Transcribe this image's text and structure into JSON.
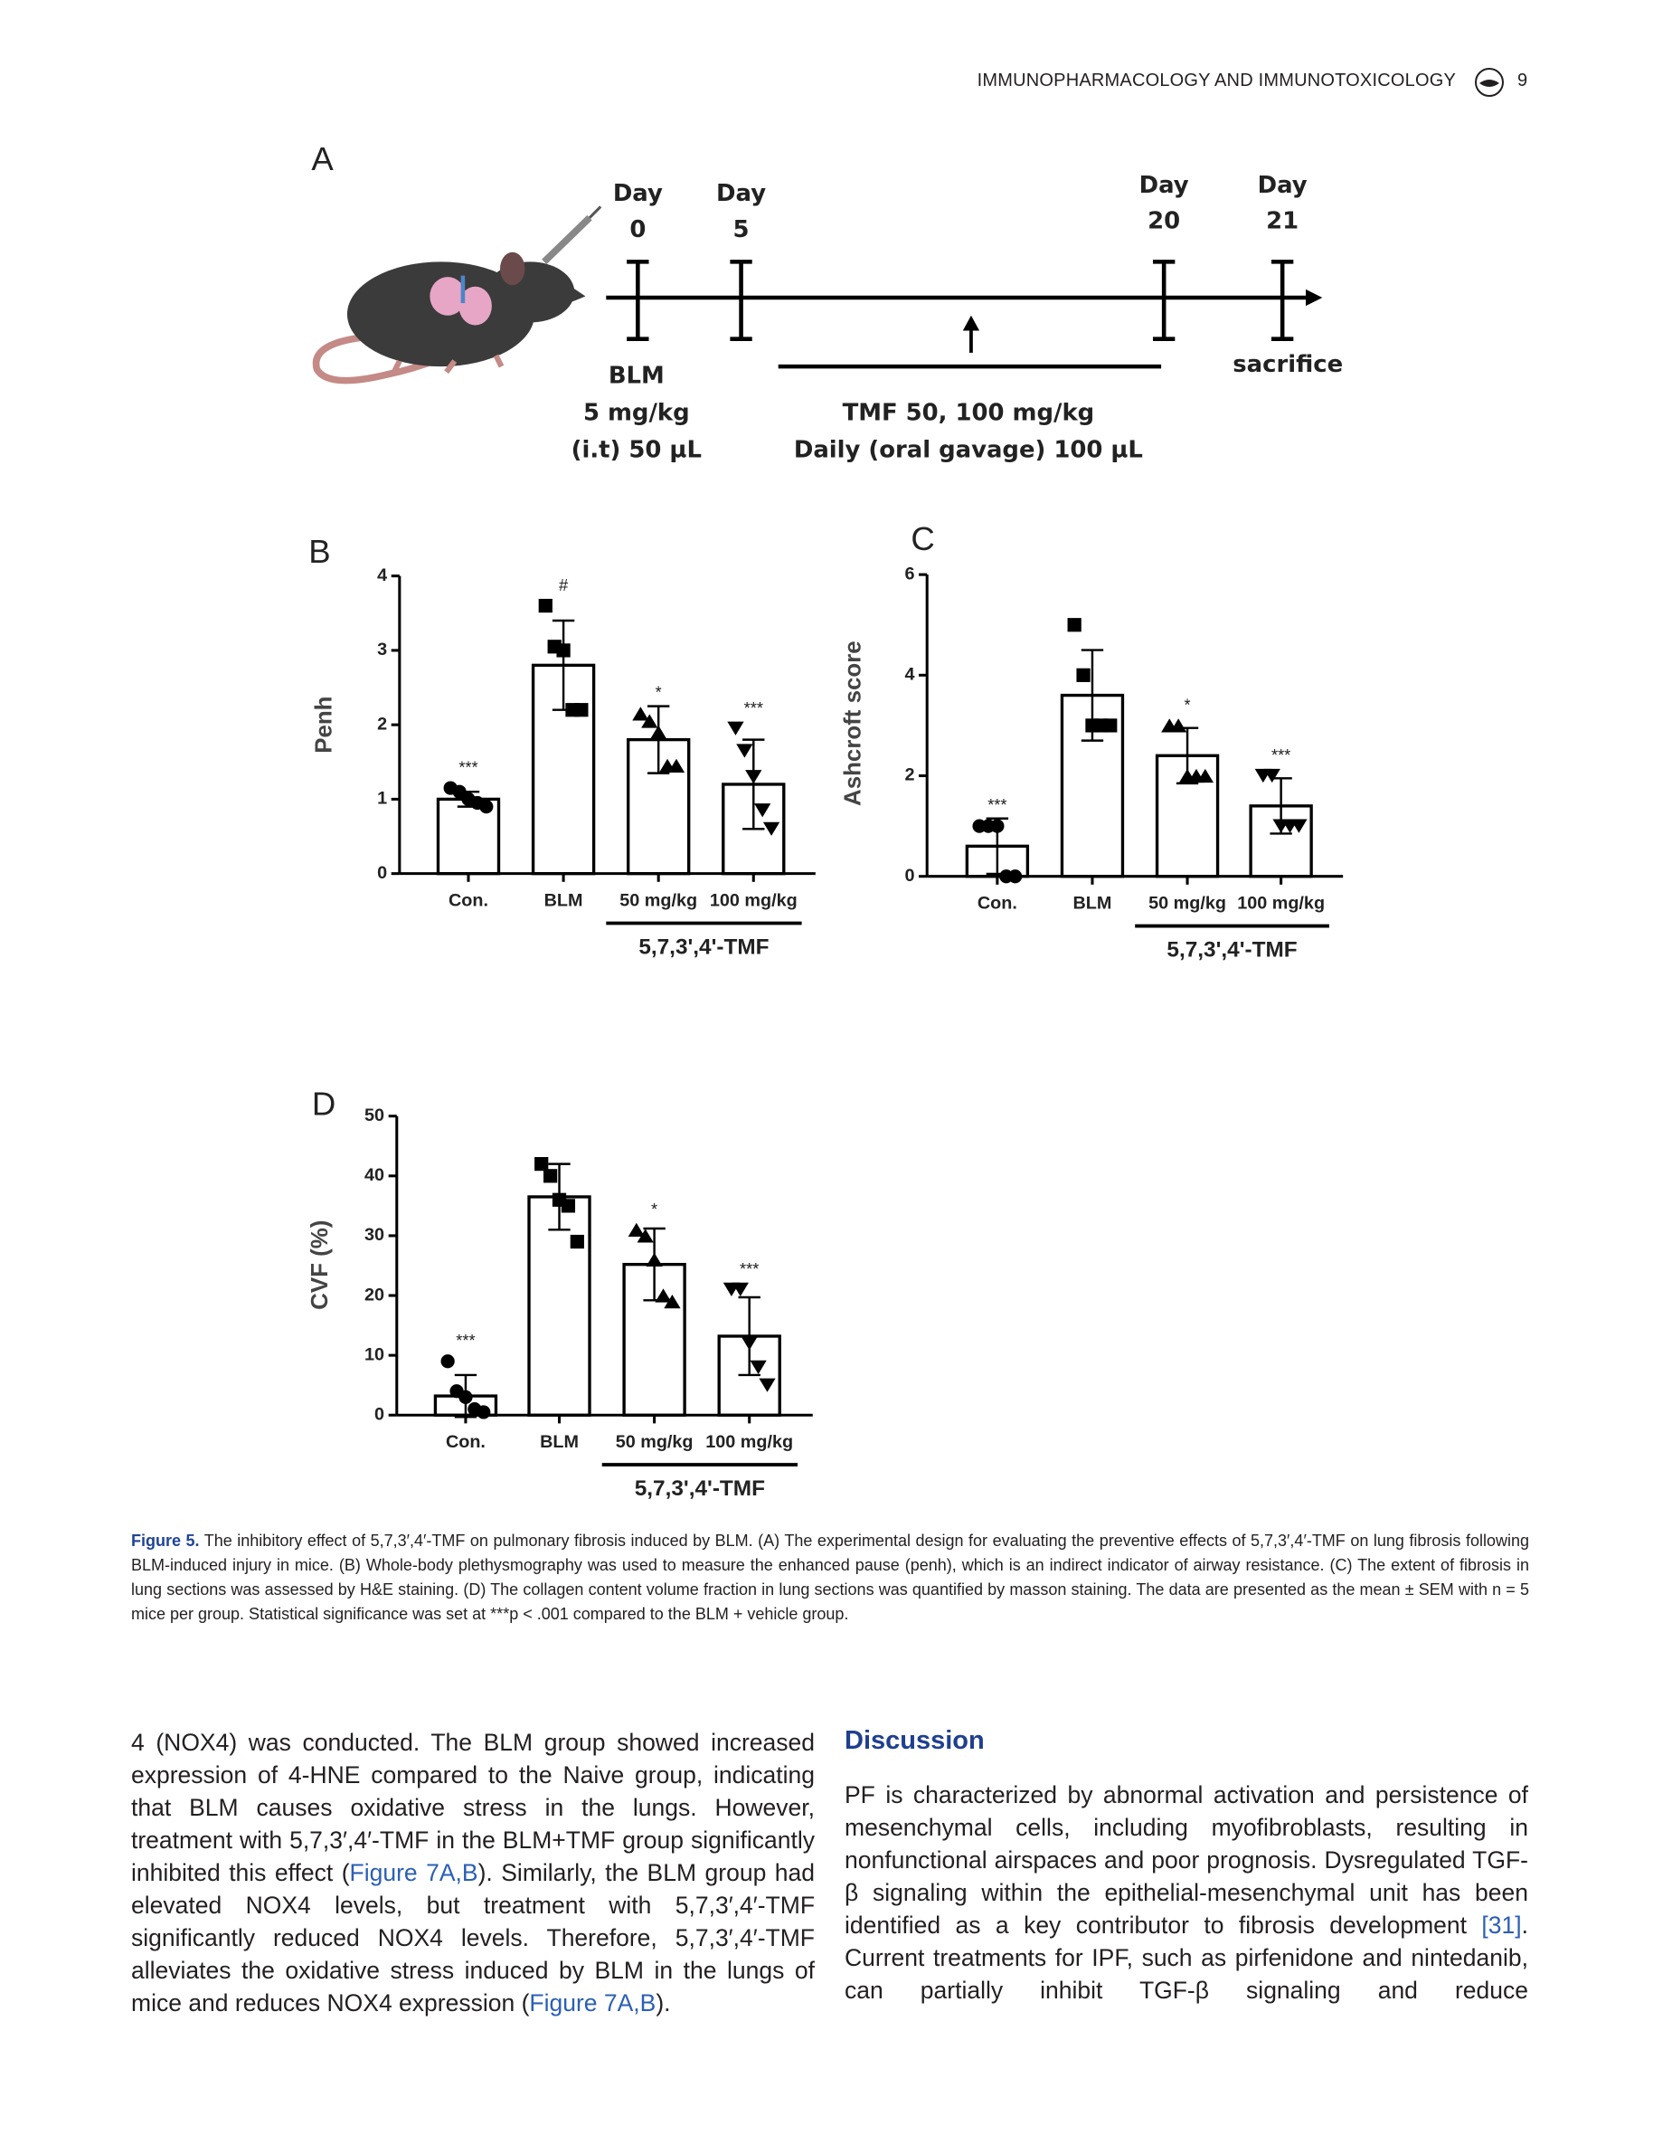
{
  "header": {
    "journal": "IMMUNOPHARMACOLOGY AND IMMUNOTOXICOLOGY",
    "page": "9"
  },
  "panel_a": {
    "label": "A",
    "days": [
      {
        "label": "Day",
        "day": "0"
      },
      {
        "label": "Day",
        "day": "5"
      },
      {
        "label": "Day",
        "day": "20"
      },
      {
        "label": "Day",
        "day": "21"
      }
    ],
    "blm": [
      "BLM",
      "5 mg/kg",
      "(i.t) 50 µL"
    ],
    "tmf": [
      "TMF 50, 100 mg/kg",
      "Daily (oral gavage) 100 µL"
    ],
    "sacrifice": "sacrifice"
  },
  "chart_data": [
    {
      "panel": "B",
      "type": "bar",
      "ylabel": "Penh",
      "categories": [
        "Con.",
        "BLM",
        "50 mg/kg",
        "100 mg/kg"
      ],
      "group_label": "5,7,3',4'-TMF",
      "values": [
        1.0,
        2.8,
        1.8,
        1.2
      ],
      "errors": [
        0.1,
        0.6,
        0.45,
        0.6
      ],
      "points": [
        [
          1.15,
          1.1,
          1.0,
          0.95,
          0.9
        ],
        [
          3.6,
          3.05,
          3.0,
          2.2,
          2.2
        ],
        [
          2.15,
          2.05,
          1.9,
          1.45,
          1.45
        ],
        [
          1.95,
          1.65,
          1.3,
          0.85,
          0.6
        ]
      ],
      "markers": [
        "circle",
        "square",
        "triangle-up",
        "triangle-down"
      ],
      "annotations": [
        "***",
        "#",
        "*",
        "***"
      ],
      "ylim": [
        0,
        4
      ],
      "yticks": [
        0,
        1,
        2,
        3,
        4
      ],
      "bar_color": "#ffffff",
      "marker_color": "#000000"
    },
    {
      "panel": "C",
      "type": "bar",
      "ylabel": "Ashcroft score",
      "categories": [
        "Con.",
        "BLM",
        "50 mg/kg",
        "100 mg/kg"
      ],
      "group_label": "5,7,3',4'-TMF",
      "values": [
        0.6,
        3.6,
        2.4,
        1.4
      ],
      "errors": [
        0.55,
        0.9,
        0.55,
        0.55
      ],
      "points": [
        [
          1.0,
          1.0,
          1.0,
          0,
          0
        ],
        [
          5.0,
          4.0,
          3.0,
          3.0,
          3.0
        ],
        [
          3.0,
          3.0,
          2.0,
          2.0,
          2.0
        ],
        [
          2.0,
          2.0,
          1.0,
          1.0,
          1.0
        ]
      ],
      "markers": [
        "circle",
        "square",
        "triangle-up",
        "triangle-down"
      ],
      "annotations": [
        "***",
        null,
        "*",
        "***"
      ],
      "ylim": [
        0,
        6
      ],
      "yticks": [
        0,
        2,
        4,
        6
      ],
      "bar_color": "#ffffff",
      "marker_color": "#000000"
    },
    {
      "panel": "D",
      "type": "bar",
      "ylabel": "CVF (%)",
      "categories": [
        "Con.",
        "BLM",
        "50 mg/kg",
        "100 mg/kg"
      ],
      "group_label": "5,7,3',4'-TMF",
      "values": [
        3.2,
        36.5,
        25.2,
        13.2
      ],
      "errors": [
        3.5,
        5.5,
        6.0,
        6.5
      ],
      "points": [
        [
          9,
          4,
          3,
          1,
          0.5
        ],
        [
          42,
          40,
          36,
          35,
          29
        ],
        [
          31,
          30,
          26,
          20,
          19
        ],
        [
          21,
          21,
          12,
          8,
          5
        ]
      ],
      "markers": [
        "circle",
        "square",
        "triangle-up",
        "triangle-down"
      ],
      "annotations": [
        "***",
        null,
        "*",
        "***"
      ],
      "ylim": [
        0,
        50
      ],
      "yticks": [
        0,
        10,
        20,
        30,
        40,
        50
      ],
      "bar_color": "#ffffff",
      "marker_color": "#000000"
    }
  ],
  "caption": {
    "label": "Figure 5.",
    "text": "The inhibitory effect of 5,7,3′,4′-TMF on pulmonary fibrosis induced by BLM. (A) The experimental design for evaluating the preventive effects of 5,7,3′,4′-TMF on lung fibrosis following BLM-induced injury in mice. (B) Whole-body plethysmography was used to measure the enhanced pause (penh), which is an indirect indicator of airway resistance. (C) The extent of fibrosis in lung sections was assessed by H&E staining. (D) The collagen content volume fraction in lung sections was quantified by masson staining. The data are presented as the mean ± SEM with n = 5 mice per group. Statistical significance was set at ***p < .001 compared to the BLM + vehicle group."
  },
  "body": {
    "left": [
      "4 (NOX4) was conducted. The BLM group showed increased expression of 4-HNE compared to the Naive group, indicating that BLM causes oxidative stress in the lungs. However, treatment with 5,7,3′,4′-TMF in the BLM+TMF group significantly inhibited this effect (",
      "Figure 7A,B",
      "). Similarly, the BLM group had elevated NOX4 levels, but treatment with 5,7,3′,4′-TMF significantly reduced NOX4 levels. Therefore, 5,7,3′,4′-TMF alleviates the oxidative stress induced by BLM in the lungs of mice and reduces NOX4 expression (",
      "Figure 7A,B",
      ")."
    ],
    "heading": "Discussion",
    "right": [
      "PF is characterized by abnormal activation and persistence of mesenchymal cells, including myofibroblasts, resulting in nonfunctional airspaces and poor prognosis. Dysregulated TGF-β signaling within the epithelial-mesenchymal unit has been identified as a key contributor to fibrosis development ",
      "[31]",
      ". Current treatments for IPF, such as pirfenidone and nintedanib, can partially inhibit TGF-β signaling and reduce"
    ]
  }
}
